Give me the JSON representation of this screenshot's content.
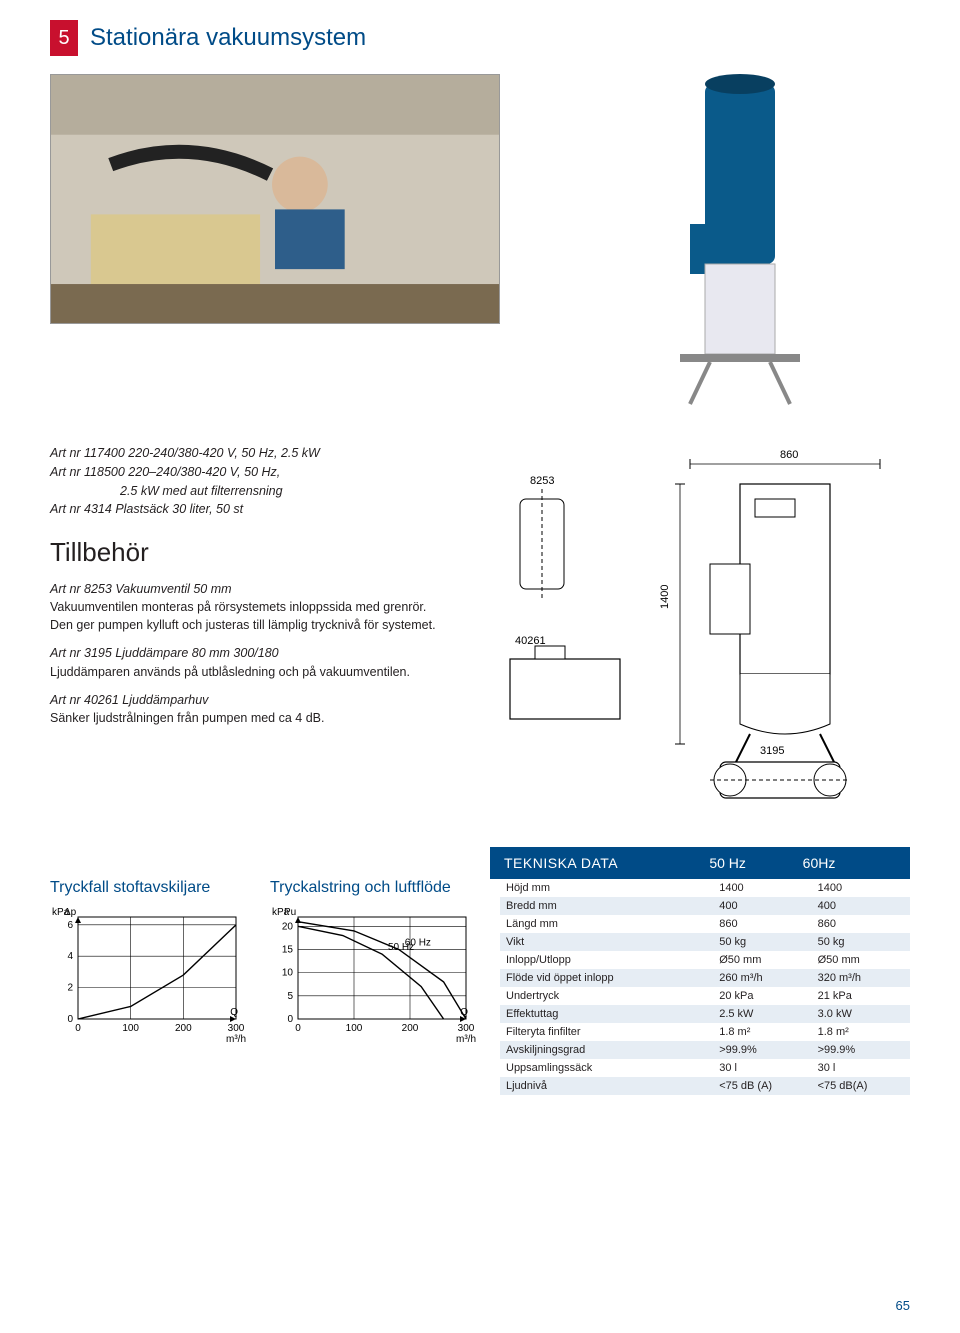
{
  "header": {
    "badge": "5",
    "title": "Stationära vakuumsystem"
  },
  "side_badge": "5",
  "specs": {
    "line1": "Art nr 117400 220-240/380-420 V, 50 Hz, 2.5 kW",
    "line2a": "Art nr 118500 220–240/380-420 V, 50 Hz,",
    "line2b": "2.5 kW med aut filterrensning",
    "line3": "Art nr 4314 Plastsäck 30 liter, 50 st"
  },
  "tillbehor_heading": "Tillbehör",
  "accessories": {
    "a1_title": "Art nr 8253 Vakuumventil 50 mm",
    "a1_body": "Vakuumventilen monteras på rörsystemets inloppssida med grenrör. Den ger pumpen kylluft och justeras till lämplig trycknivå för systemet.",
    "a2_title": "Art nr 3195   Ljuddämpare 80 mm 300/180",
    "a2_body": "Ljuddämparen används på utblåsledning och på vakuumventilen.",
    "a3_title": "Art nr 40261 Ljuddämparhuv",
    "a3_body": "Sänker ljudstrålningen från pumpen med ca 4 dB."
  },
  "diagram_labels": {
    "l8253": "8253",
    "l40261": "40261",
    "l3195": "3195",
    "l1400": "1400",
    "l860": "860"
  },
  "tekniska_header": {
    "title": "TEKNISKA DATA",
    "col1": "50 Hz",
    "col2": "60Hz"
  },
  "table_rows": [
    [
      "Höjd mm",
      "1400",
      "1400"
    ],
    [
      "Bredd mm",
      "400",
      "400"
    ],
    [
      "Längd mm",
      "860",
      "860"
    ],
    [
      "Vikt",
      "50 kg",
      "50 kg"
    ],
    [
      "Inlopp/Utlopp",
      "Ø50 mm",
      "Ø50 mm"
    ],
    [
      "Flöde vid öppet inlopp",
      "260 m³/h",
      "320 m³/h"
    ],
    [
      "Undertryck",
      "20 kPa",
      "21 kPa"
    ],
    [
      "Effektuttag",
      "2.5 kW",
      "3.0 kW"
    ],
    [
      "Filteryta finfilter",
      "1.8 m²",
      "1.8 m²"
    ],
    [
      "Avskiljningsgrad",
      ">99.9%",
      ">99.9%"
    ],
    [
      "Uppsamlingssäck",
      "30 l",
      "30 l"
    ],
    [
      "Ljudnivå",
      "<75 dB (A)",
      "<75 dB(A)"
    ]
  ],
  "chart1": {
    "title": "Tryckfall stoftavskiljare",
    "y_unit": "kPa",
    "y_symbol": "Δp",
    "x_unit": "m³/h",
    "x_symbol": "Q",
    "yticks": [
      0,
      2,
      4,
      6
    ],
    "xticks": [
      0,
      100,
      200,
      300
    ],
    "xlim": [
      0,
      300
    ],
    "ylim": [
      0,
      6.5
    ],
    "line_color": "#000000",
    "grid_color": "#000000",
    "points": [
      [
        0,
        0
      ],
      [
        100,
        0.8
      ],
      [
        200,
        2.8
      ],
      [
        300,
        6.0
      ]
    ]
  },
  "chart2": {
    "title": "Tryckalstring och luftflöde",
    "y_unit": "kPa",
    "y_symbol": "Pu",
    "x_unit": "m³/h",
    "x_symbol": "Q",
    "yticks": [
      0,
      5,
      10,
      15,
      20
    ],
    "xticks": [
      0,
      100,
      200,
      300
    ],
    "xlim": [
      0,
      300
    ],
    "ylim": [
      0,
      22
    ],
    "line_color": "#000000",
    "grid_color": "#000000",
    "series": [
      {
        "label": "50 Hz",
        "points": [
          [
            0,
            20
          ],
          [
            80,
            18
          ],
          [
            150,
            14
          ],
          [
            220,
            7
          ],
          [
            260,
            0
          ]
        ]
      },
      {
        "label": "60 Hz",
        "points": [
          [
            0,
            21
          ],
          [
            100,
            19
          ],
          [
            180,
            15
          ],
          [
            260,
            8
          ],
          [
            320,
            0
          ]
        ]
      }
    ]
  },
  "page_number": "65",
  "colors": {
    "brand_blue": "#004b87",
    "brand_red": "#c8102e",
    "row_alt": "#e6edf4"
  }
}
